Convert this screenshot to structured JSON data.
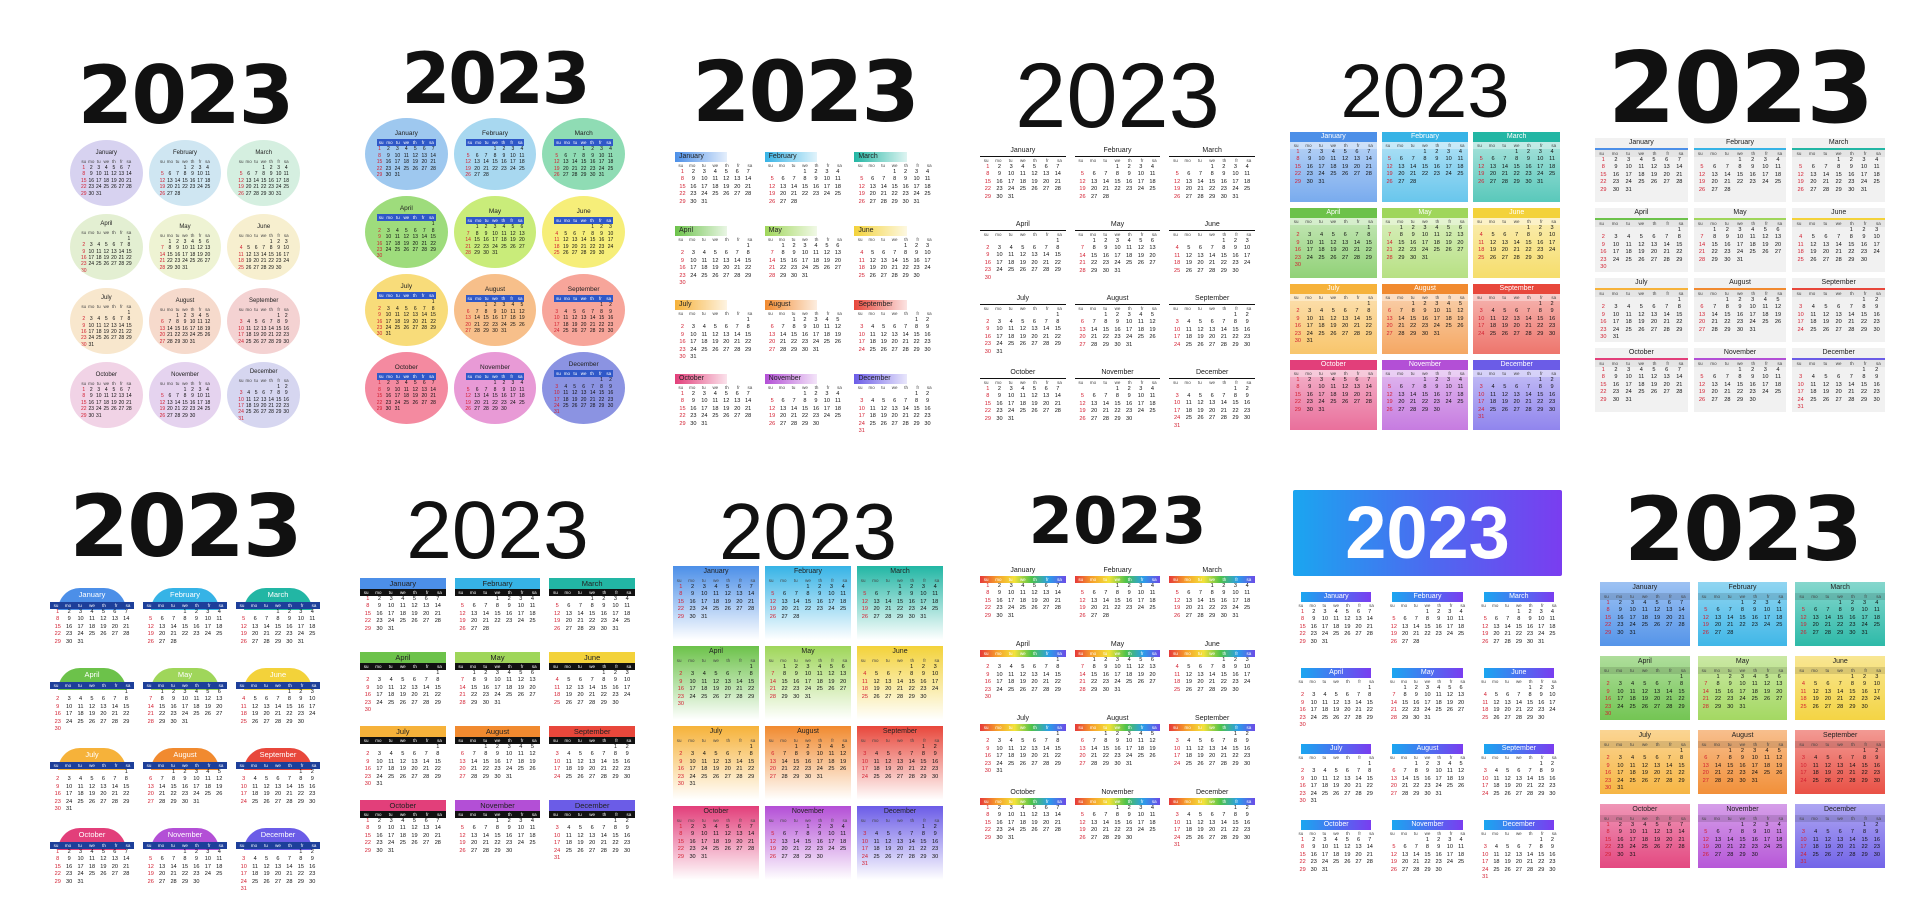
{
  "year": "2023",
  "months": [
    "January",
    "February",
    "March",
    "April",
    "May",
    "June",
    "July",
    "August",
    "September",
    "October",
    "November",
    "December"
  ],
  "weekdays": [
    "su",
    "mo",
    "tu",
    "we",
    "th",
    "fr",
    "sa"
  ],
  "palette": [
    "#4c8fe8",
    "#36b3e6",
    "#22b6a4",
    "#6cc24a",
    "#9fd65a",
    "#f3d23a",
    "#f6b23a",
    "#f18a2f",
    "#e8473b",
    "#e23f7a",
    "#b34fd6",
    "#6b5ce7"
  ],
  "pastel": [
    "#d7d2f0",
    "#cfe6f2",
    "#d5efe0",
    "#e3efd2",
    "#eef3d3",
    "#f7efcf",
    "#f8e7cd",
    "#f6dacc",
    "#f4d2d2",
    "#f1d3e6",
    "#e5d3ef",
    "#d6d6f0"
  ],
  "bright_circles": [
    "#9ec8ef",
    "#a8d8f0",
    "#8fdcb4",
    "#9edc7c",
    "#c9ec7a",
    "#f6ee79",
    "#f8dc7a",
    "#f7bf8a",
    "#f7a59a",
    "#f48aa0",
    "#e89ad6",
    "#8b93e2"
  ],
  "panels_top": [
    {
      "style": "circles-pastel"
    },
    {
      "style": "circles-bright"
    },
    {
      "style": "tabs"
    },
    {
      "style": "plain"
    },
    {
      "style": "blocks"
    },
    {
      "style": "gray"
    }
  ],
  "panels_bottom": [
    {
      "style": "arches"
    },
    {
      "style": "bars"
    },
    {
      "style": "gradient"
    },
    {
      "style": "rainbow-header"
    },
    {
      "style": "banner"
    },
    {
      "style": "tiles"
    }
  ]
}
